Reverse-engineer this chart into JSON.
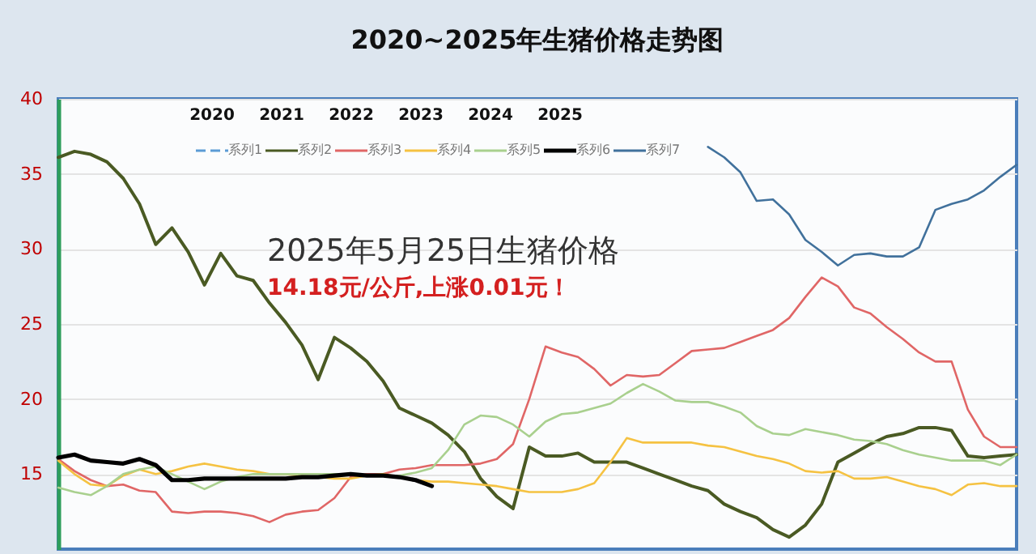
{
  "chart_data": {
    "type": "line",
    "title": "2020~2025年生猪价格走势图",
    "annotations": [
      "2020",
      "2021",
      "2022",
      "2023",
      "2024",
      "2025",
      "2025年5月25日生猪价格",
      "14.18元/公斤,上涨0.01元！"
    ],
    "categories": [
      null,
      null,
      null,
      null,
      null,
      null,
      null,
      null,
      null,
      null,
      null,
      null,
      null,
      null,
      null,
      null,
      null,
      null,
      null,
      null,
      null,
      null,
      null,
      null,
      null,
      null,
      null,
      null,
      null,
      null,
      null,
      null,
      null,
      null,
      null,
      null,
      null,
      null,
      null,
      null,
      null,
      null,
      null,
      null,
      null,
      null,
      null,
      null,
      null,
      null,
      null,
      null,
      null,
      null,
      null,
      null,
      null,
      null,
      null,
      null
    ],
    "ylim": [
      10,
      40
    ],
    "yticks": [
      15,
      20,
      25,
      30,
      35,
      40
    ],
    "grid": "y",
    "legend": "top",
    "tick_labels": "y",
    "series": [
      {
        "name": "系列1",
        "color": "#5b9bd5",
        "line_style": "dashed",
        "values": [
          null,
          null,
          null,
          null,
          null,
          null,
          null,
          null,
          null,
          null,
          null,
          null,
          null,
          null,
          null,
          null,
          null,
          null,
          null,
          null,
          null,
          null,
          null,
          null,
          null,
          null,
          null,
          null,
          null,
          null,
          null,
          null,
          null,
          null,
          null,
          null,
          null,
          null,
          null,
          null,
          null,
          null,
          null,
          null,
          null,
          null,
          null,
          null,
          null,
          null,
          null,
          null,
          null,
          null,
          null,
          null,
          null,
          null,
          null,
          null
        ]
      },
      {
        "name": "系列2",
        "color": "#4a5a23",
        "line_style": "solid",
        "values": [
          36.1,
          36.5,
          36.3,
          35.8,
          34.7,
          33.0,
          30.3,
          31.4,
          29.8,
          27.6,
          29.7,
          28.2,
          27.9,
          26.4,
          25.1,
          23.6,
          21.3,
          24.1,
          23.4,
          22.5,
          21.2,
          19.4,
          18.9,
          18.4,
          17.6,
          16.5,
          14.7,
          13.5,
          12.7,
          16.8,
          16.2,
          16.2,
          16.4,
          15.8,
          15.8,
          15.8,
          15.4,
          15.0,
          14.6,
          14.2,
          13.9,
          13.0,
          12.5,
          12.1,
          11.3,
          10.8,
          11.6,
          13.0,
          15.8,
          16.4,
          17.0,
          17.5,
          17.7,
          18.1,
          18.1,
          17.9,
          16.2,
          16.1,
          16.2,
          16.3
        ]
      },
      {
        "name": "系列3",
        "color": "#e06666",
        "line_style": "solid",
        "values": [
          16.0,
          15.2,
          14.6,
          14.2,
          14.3,
          13.9,
          13.8,
          12.5,
          12.4,
          12.5,
          12.5,
          12.4,
          12.2,
          11.8,
          12.3,
          12.5,
          12.6,
          13.4,
          14.8,
          15.0,
          15.0,
          15.3,
          15.4,
          15.6,
          15.6,
          15.6,
          15.7,
          16.0,
          17.0,
          20.0,
          23.5,
          23.1,
          22.8,
          22.0,
          20.9,
          21.6,
          21.5,
          21.6,
          22.4,
          23.2,
          23.3,
          23.4,
          23.8,
          24.2,
          24.6,
          25.4,
          26.8,
          28.1,
          27.5,
          26.1,
          25.7,
          24.8,
          24.0,
          23.1,
          22.5,
          22.5,
          19.3,
          17.5,
          16.8,
          16.8
        ]
      },
      {
        "name": "系列4",
        "color": "#f5c242",
        "line_style": "solid",
        "values": [
          15.9,
          15.0,
          14.3,
          14.2,
          14.9,
          15.3,
          15.0,
          15.2,
          15.5,
          15.7,
          15.5,
          15.3,
          15.2,
          15.0,
          15.0,
          14.9,
          14.8,
          14.7,
          14.7,
          14.9,
          15.0,
          14.8,
          14.6,
          14.5,
          14.5,
          14.4,
          14.3,
          14.2,
          14.0,
          13.8,
          13.8,
          13.8,
          14.0,
          14.4,
          15.8,
          17.4,
          17.1,
          17.1,
          17.1,
          17.1,
          16.9,
          16.8,
          16.5,
          16.2,
          16.0,
          15.7,
          15.2,
          15.1,
          15.2,
          14.7,
          14.7,
          14.8,
          14.5,
          14.2,
          14.0,
          13.6,
          14.3,
          14.4,
          14.2,
          14.2
        ]
      },
      {
        "name": "系列5",
        "color": "#a9d08e",
        "line_style": "solid",
        "values": [
          14.1,
          13.8,
          13.6,
          14.2,
          15.0,
          15.3,
          15.5,
          15.0,
          14.5,
          14.0,
          14.5,
          14.8,
          15.0,
          15.0,
          15.0,
          15.0,
          15.0,
          15.0,
          15.0,
          14.9,
          14.9,
          14.9,
          15.1,
          15.4,
          16.6,
          18.3,
          18.9,
          18.8,
          18.3,
          17.5,
          18.5,
          19.0,
          19.1,
          19.4,
          19.7,
          20.4,
          21.0,
          20.5,
          19.9,
          19.8,
          19.8,
          19.5,
          19.1,
          18.2,
          17.7,
          17.6,
          18.0,
          17.8,
          17.6,
          17.3,
          17.2,
          17.0,
          16.6,
          16.3,
          16.1,
          15.9,
          15.9,
          15.9,
          15.6,
          16.3
        ]
      },
      {
        "name": "系列6",
        "color": "#000000",
        "line_style": "solid",
        "values": [
          16.1,
          16.3,
          15.9,
          15.8,
          15.7,
          16.0,
          15.6,
          14.6,
          14.6,
          14.7,
          14.7,
          14.7,
          14.7,
          14.7,
          14.7,
          14.8,
          14.8,
          14.9,
          15.0,
          14.9,
          14.9,
          14.8,
          14.6,
          14.2,
          null,
          null,
          null,
          null,
          null,
          null,
          null,
          null,
          null,
          null,
          null,
          null,
          null,
          null,
          null,
          null,
          null,
          null,
          null,
          null,
          null,
          null,
          null,
          null,
          null,
          null,
          null,
          null,
          null,
          null,
          null,
          null,
          null,
          null,
          null,
          null
        ]
      },
      {
        "name": "系列7",
        "color": "#41719c",
        "line_style": "solid",
        "values": [
          null,
          null,
          null,
          null,
          null,
          null,
          null,
          null,
          null,
          null,
          null,
          null,
          null,
          null,
          null,
          null,
          null,
          null,
          null,
          null,
          null,
          null,
          null,
          null,
          null,
          null,
          null,
          null,
          null,
          null,
          null,
          null,
          null,
          null,
          null,
          null,
          null,
          null,
          null,
          null,
          36.8,
          36.1,
          35.1,
          33.2,
          33.3,
          32.3,
          30.6,
          29.8,
          28.9,
          29.6,
          29.7,
          29.5,
          29.5,
          30.1,
          32.6,
          33.0,
          33.3,
          33.9,
          34.8,
          35.6
        ]
      }
    ]
  }
}
